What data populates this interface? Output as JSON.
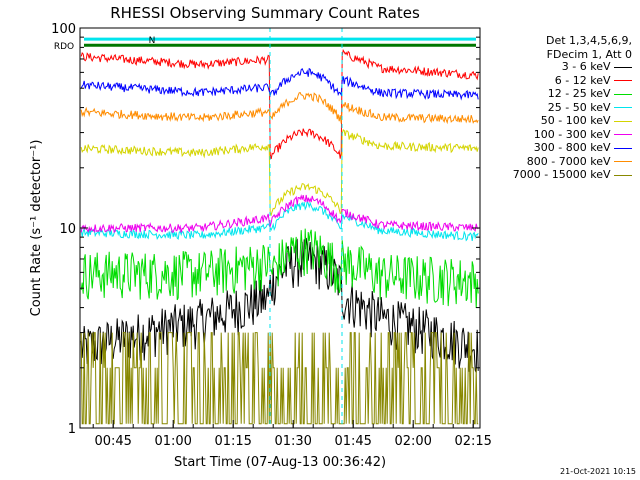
{
  "chart_data": {
    "type": "line",
    "title": "RHESSI Observing Summary Count Rates",
    "xlabel": "Start Time (07-Aug-13 00:36:42)",
    "ylabel": "Count Rate (s⁻¹ detector⁻¹)",
    "ylim": [
      1,
      100
    ],
    "yscale": "log",
    "xlim_minutes": [
      0,
      100
    ],
    "x_ticks": [
      {
        "label": "00:45",
        "minutes": 8.3
      },
      {
        "label": "01:00",
        "minutes": 23.3
      },
      {
        "label": "01:15",
        "minutes": 38.3
      },
      {
        "label": "01:30",
        "minutes": 53.3
      },
      {
        "label": "01:45",
        "minutes": 68.3
      },
      {
        "label": "02:00",
        "minutes": 83.3
      },
      {
        "label": "02:15",
        "minutes": 98.3
      }
    ],
    "y_ticks": [
      {
        "label": "1",
        "value": 1
      },
      {
        "label": "10",
        "value": 10
      },
      {
        "label": "100",
        "value": 100
      }
    ],
    "legend": {
      "placement": "right",
      "header": [
        "Det 1,3,4,5,6,9,",
        "FDecim 1, Att 0"
      ]
    },
    "flags": [
      {
        "label": "RDO",
        "color": "#007700",
        "value": 82
      },
      {
        "label": "N",
        "color": "#00e5ee",
        "value": 88
      }
    ],
    "series": [
      {
        "name": "3 - 6 keV",
        "color": "#000000",
        "levels": [
          2.5,
          4,
          7,
          4,
          2.5
        ]
      },
      {
        "name": "6 - 12 keV",
        "color": "#ff0000",
        "levels": [
          72,
          62,
          30,
          65,
          58
        ]
      },
      {
        "name": "12 - 25 keV",
        "color": "#00dd00",
        "levels": [
          6,
          6,
          8,
          6,
          5.5
        ]
      },
      {
        "name": "25 - 50 keV",
        "color": "#00e5ee",
        "levels": [
          9.5,
          9,
          13,
          10,
          9
        ]
      },
      {
        "name": "50 - 100 keV",
        "color": "#d4d400",
        "levels": [
          25,
          23,
          16,
          26,
          25
        ]
      },
      {
        "name": "100 - 300 keV",
        "color": "#ee00ee",
        "levels": [
          10,
          10,
          14,
          10.5,
          10
        ]
      },
      {
        "name": "300 - 800 keV",
        "color": "#0000ff",
        "levels": [
          52,
          45,
          60,
          48,
          46
        ]
      },
      {
        "name": "800 - 7000 keV",
        "color": "#ff8c00",
        "levels": [
          38,
          34,
          46,
          36,
          35
        ]
      },
      {
        "name": "7000 - 15000 keV",
        "color": "#888800",
        "levels": [
          1.4,
          1.4,
          2.2,
          1.4,
          1.4
        ]
      }
    ],
    "segments_minutes": [
      [
        0,
        47.5
      ],
      [
        47.5,
        65.5
      ],
      [
        65.5,
        100
      ]
    ],
    "grid": false
  },
  "footer": {
    "timestamp": "21-Oct-2021 10:15"
  }
}
